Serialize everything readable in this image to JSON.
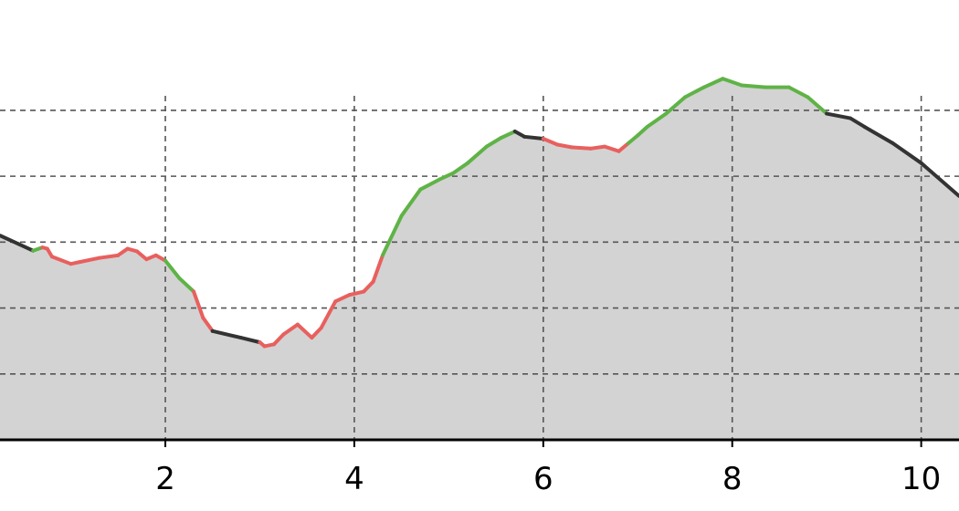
{
  "chart_data": {
    "type": "area",
    "title": "",
    "xlabel": "",
    "ylabel": "",
    "xlim": [
      0.25,
      10.4
    ],
    "ylim": [
      0,
      5
    ],
    "x_ticks": [
      2,
      4,
      6,
      8,
      10
    ],
    "x_tick_labels": [
      "2",
      "4",
      "6",
      "8",
      "10"
    ],
    "y_gridlines": [
      1,
      2,
      3,
      4,
      5
    ],
    "grid": true,
    "fill_color": "#d3d3d3",
    "colors": {
      "ascent": "#5fb346",
      "descent": "#e8605e",
      "flat": "#333333"
    },
    "series": [
      {
        "x": [
          0.25,
          0.45,
          0.6,
          0.7,
          0.75,
          0.8,
          1.0,
          1.1,
          1.3,
          1.5,
          1.6,
          1.7,
          1.8,
          1.9,
          2.0,
          2.15,
          2.3,
          2.4,
          2.5,
          2.8,
          3.0,
          3.05,
          3.15,
          3.25,
          3.4,
          3.55,
          3.65,
          3.8,
          3.95,
          4.1,
          4.2,
          4.3,
          4.5,
          4.7,
          4.9,
          5.05,
          5.2,
          5.4,
          5.55,
          5.7,
          5.8,
          6.0,
          6.15,
          6.3,
          6.5,
          6.65,
          6.8,
          6.9,
          7.0,
          7.1,
          7.3,
          7.5,
          7.7,
          7.9,
          8.1,
          8.35,
          8.6,
          8.8,
          9.0,
          9.25,
          9.4,
          9.7,
          10.0,
          10.4
        ],
        "y": [
          3.1,
          2.97,
          2.87,
          2.92,
          2.9,
          2.78,
          2.67,
          2.7,
          2.76,
          2.8,
          2.9,
          2.86,
          2.74,
          2.8,
          2.72,
          2.45,
          2.25,
          1.85,
          1.65,
          1.55,
          1.48,
          1.42,
          1.45,
          1.6,
          1.75,
          1.55,
          1.7,
          2.1,
          2.2,
          2.25,
          2.4,
          2.8,
          3.4,
          3.8,
          3.95,
          4.05,
          4.2,
          4.45,
          4.58,
          4.68,
          4.6,
          4.57,
          4.48,
          4.44,
          4.42,
          4.45,
          4.38,
          4.5,
          4.62,
          4.75,
          4.95,
          5.2,
          5.35,
          5.48,
          5.38,
          5.35,
          5.35,
          5.2,
          4.95,
          4.88,
          4.75,
          4.5,
          4.2,
          3.7
        ],
        "segment_types": [
          "flat",
          "flat",
          "ascent",
          "descent",
          "descent",
          "descent",
          "descent",
          "descent",
          "descent",
          "descent",
          "descent",
          "descent",
          "descent",
          "descent",
          "ascent",
          "ascent",
          "descent",
          "descent",
          "flat",
          "flat",
          "descent",
          "descent",
          "descent",
          "descent",
          "descent",
          "descent",
          "descent",
          "descent",
          "descent",
          "descent",
          "descent",
          "ascent",
          "ascent",
          "ascent",
          "ascent",
          "ascent",
          "ascent",
          "ascent",
          "ascent",
          "flat",
          "flat",
          "descent",
          "descent",
          "descent",
          "descent",
          "descent",
          "descent",
          "ascent",
          "ascent",
          "ascent",
          "ascent",
          "ascent",
          "ascent",
          "ascent",
          "ascent",
          "ascent",
          "ascent",
          "ascent",
          "flat",
          "flat",
          "flat",
          "flat",
          "flat"
        ]
      }
    ]
  }
}
